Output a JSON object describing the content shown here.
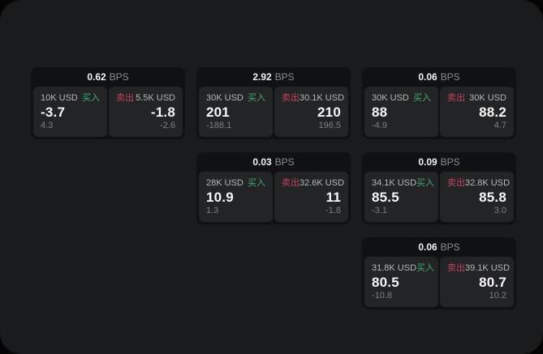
{
  "labels": {
    "bps": "BPS",
    "buy": "买入",
    "sell": "卖出"
  },
  "colors": {
    "buy": "#3fae73",
    "sell": "#c2435c",
    "surface": "#1a1b1c",
    "card": "#101112",
    "panel": "#232426"
  },
  "cards": [
    {
      "grid": {
        "row": 1,
        "col": 1
      },
      "bps": "0.62",
      "buy": {
        "notional": "10K USD",
        "value": "-3.7",
        "delta": "4.3"
      },
      "sell": {
        "notional": "5.5K USD",
        "value": "-1.8",
        "delta": "-2.6"
      }
    },
    {
      "grid": {
        "row": 1,
        "col": 2
      },
      "bps": "2.92",
      "buy": {
        "notional": "30K USD",
        "value": "201",
        "delta": "-188.1"
      },
      "sell": {
        "notional": "30.1K USD",
        "value": "210",
        "delta": "196.5"
      }
    },
    {
      "grid": {
        "row": 1,
        "col": 3
      },
      "bps": "0.06",
      "buy": {
        "notional": "30K USD",
        "value": "88",
        "delta": "-4.9"
      },
      "sell": {
        "notional": "30K USD",
        "value": "88.2",
        "delta": "4.7"
      }
    },
    {
      "grid": {
        "row": 2,
        "col": 2
      },
      "bps": "0.03",
      "buy": {
        "notional": "28K USD",
        "value": "10.9",
        "delta": "1.3"
      },
      "sell": {
        "notional": "32.6K USD",
        "value": "11",
        "delta": "-1.8"
      }
    },
    {
      "grid": {
        "row": 2,
        "col": 3
      },
      "bps": "0.09",
      "buy": {
        "notional": "34.1K USD",
        "value": "85.5",
        "delta": "-3.1"
      },
      "sell": {
        "notional": "32.8K USD",
        "value": "85.8",
        "delta": "3.0"
      }
    },
    {
      "grid": {
        "row": 3,
        "col": 3
      },
      "bps": "0.06",
      "buy": {
        "notional": "31.8K USD",
        "value": "80.5",
        "delta": "-10.8"
      },
      "sell": {
        "notional": "39.1K USD",
        "value": "80.7",
        "delta": "10.2"
      }
    }
  ]
}
